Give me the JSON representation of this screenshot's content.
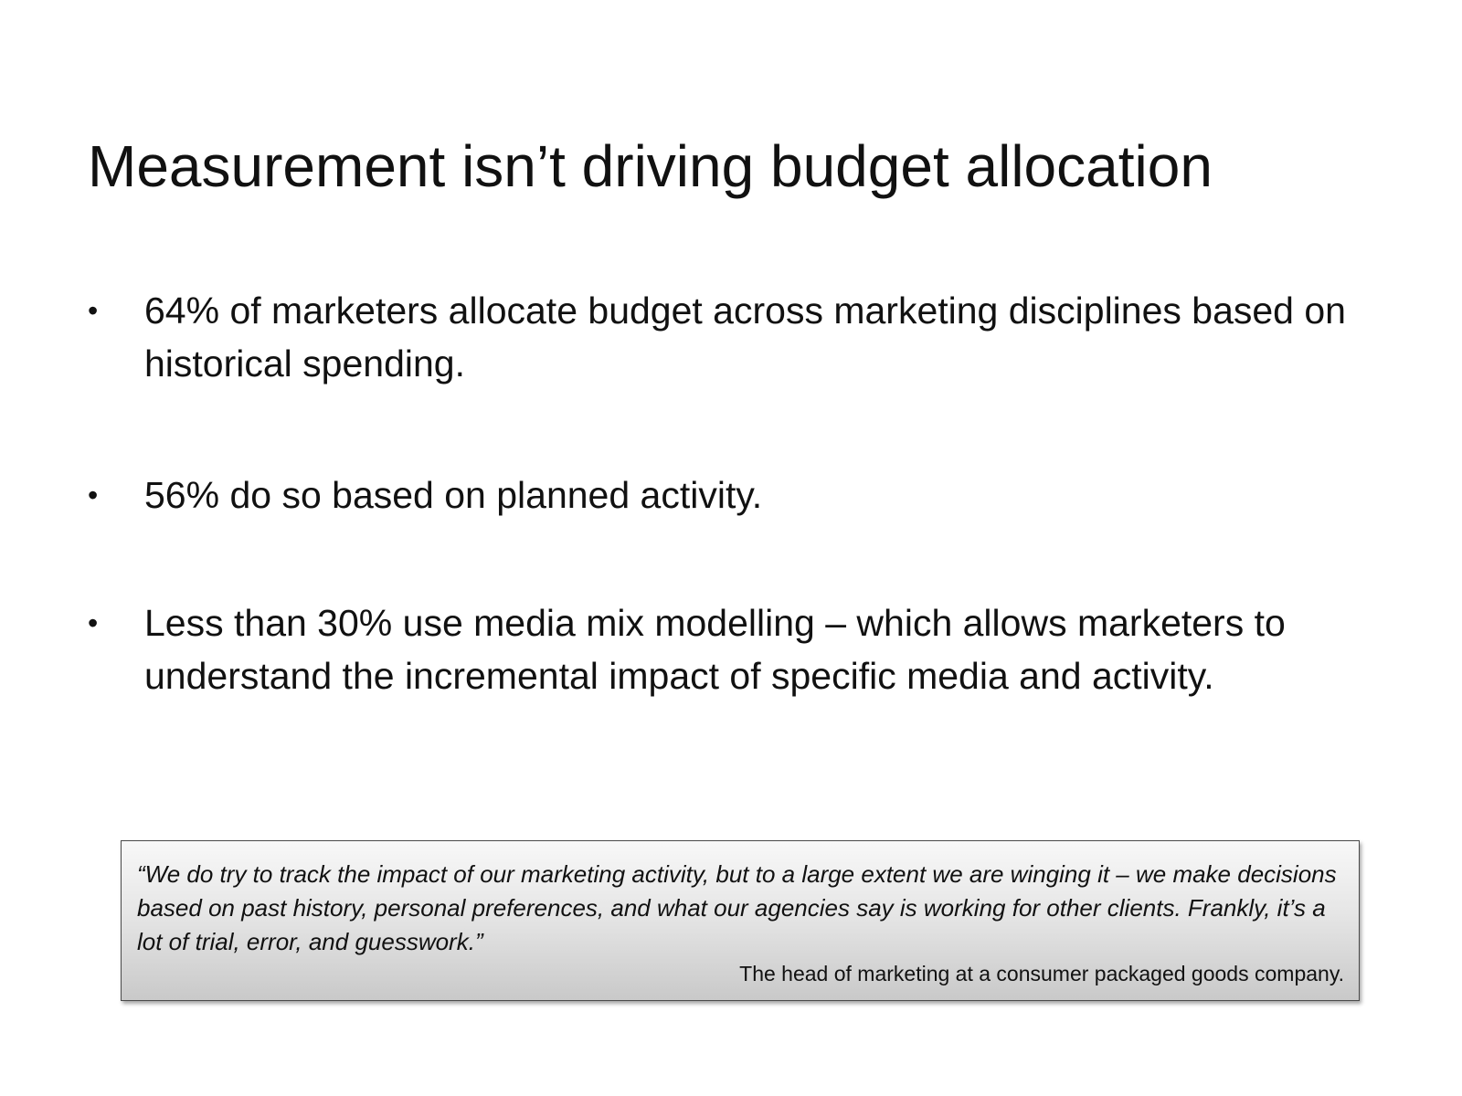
{
  "slide": {
    "title": "Measurement isn’t driving budget allocation",
    "bullet_glyph": "•",
    "bullets": [
      {
        "text": "64% of marketers allocate budget across marketing disciplines based on historical spending."
      },
      {
        "text": "56% do so based on planned activity."
      },
      {
        "text": "Less than 30% use media mix modelling – which allows marketers to understand the incremental impact of specific media and activity."
      }
    ],
    "quote": {
      "text": "“We do try to track the impact of our marketing activity, but to a large extent we are winging it – we make decisions based on past history, personal preferences, and what our agencies say is working for other clients. Frankly, it’s a lot of trial, error, and guesswork.”",
      "attribution": "The head of marketing at a consumer packaged goods company."
    }
  }
}
